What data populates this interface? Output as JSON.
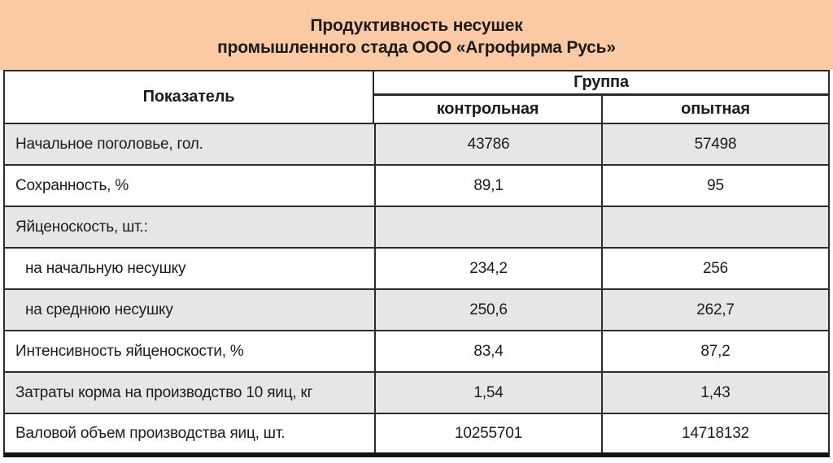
{
  "title": {
    "line1": "Продуктивность несушек",
    "line2": "промышленного стада ООО «Агрофирма Русь»"
  },
  "table": {
    "header": {
      "indicator": "Показатель",
      "group": "Группа",
      "control": "контрольная",
      "experimental": "опытная"
    },
    "rows": [
      {
        "label": "Начальное поголовье, гол.",
        "control": "43786",
        "experimental": "57498"
      },
      {
        "label": "Сохранность, %",
        "control": "89,1",
        "experimental": "95"
      },
      {
        "label": "Яйценоскость, шт.:",
        "control": "",
        "experimental": ""
      },
      {
        "label": "на начальную несушку",
        "control": "234,2",
        "experimental": "256"
      },
      {
        "label": "на среднюю несушку",
        "control": "250,6",
        "experimental": "262,7"
      },
      {
        "label": "Интенсивность яйценоскости, %",
        "control": "83,4",
        "experimental": "87,2"
      },
      {
        "label": "Затраты корма на производство 10 яиц, кг",
        "control": "1,54",
        "experimental": "1,43"
      },
      {
        "label": "Валовой объем производства яиц, шт.",
        "control": "10255701",
        "experimental": "14718132"
      }
    ]
  },
  "colors": {
    "title_band": "#fbcaa4",
    "shaded_row": "#e6e6e6",
    "border": "#2b2b2b",
    "text": "#1c1c1c"
  }
}
